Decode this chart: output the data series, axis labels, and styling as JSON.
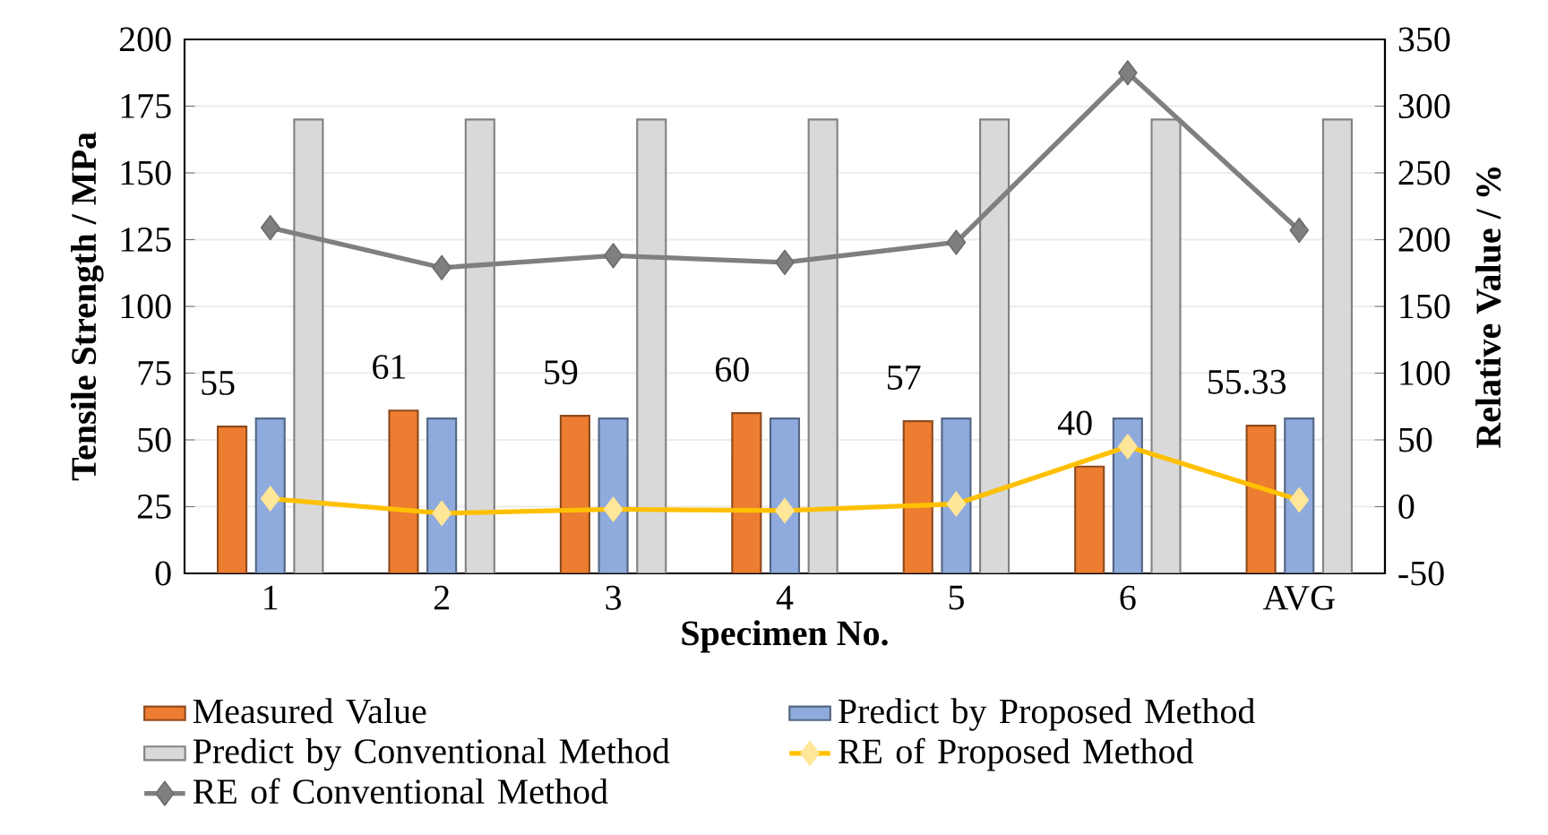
{
  "chart_data": {
    "type": "bar",
    "xlabel": "Specimen No.",
    "ylabel": "Tensile Strength / MPa",
    "y2label": "Relative Value / %",
    "categories": [
      "1",
      "2",
      "3",
      "4",
      "5",
      "6",
      "AVG"
    ],
    "series": [
      {
        "name": "Measured Value",
        "color": "#ed7d31",
        "values": [
          55,
          61,
          59,
          60,
          57,
          40,
          55.33
        ],
        "value_labels": [
          "55",
          "61",
          "59",
          "60",
          "57",
          "40",
          "55.33"
        ]
      },
      {
        "name": "Predict by Proposed Method",
        "color": "#8faadc",
        "values": [
          58,
          58,
          58,
          58,
          58,
          58,
          58
        ]
      },
      {
        "name": "Predict by Conventional Method",
        "color": "#d9d9d9",
        "values": [
          170,
          170,
          170,
          170,
          170,
          170,
          170
        ]
      },
      {
        "name": "RE of Proposed Method",
        "type": "line",
        "axis": "y2",
        "color": "#ffc000",
        "values": [
          6,
          -5,
          -2,
          -3,
          2,
          45,
          5
        ]
      },
      {
        "name": "RE of Conventional Method",
        "type": "line",
        "axis": "y2",
        "color": "#7f7f7f",
        "values": [
          209,
          179,
          188,
          183,
          198,
          325,
          207
        ]
      }
    ],
    "ylim": [
      0,
      200
    ],
    "yticks": [
      0,
      25,
      50,
      75,
      100,
      125,
      150,
      175,
      200
    ],
    "y2lim": [
      -50,
      350
    ],
    "y2ticks": [
      -50,
      0,
      50,
      100,
      150,
      200,
      250,
      300,
      350
    ],
    "grid": "y",
    "legend": "bottom",
    "marker": "diamond",
    "line_style": "solid"
  }
}
